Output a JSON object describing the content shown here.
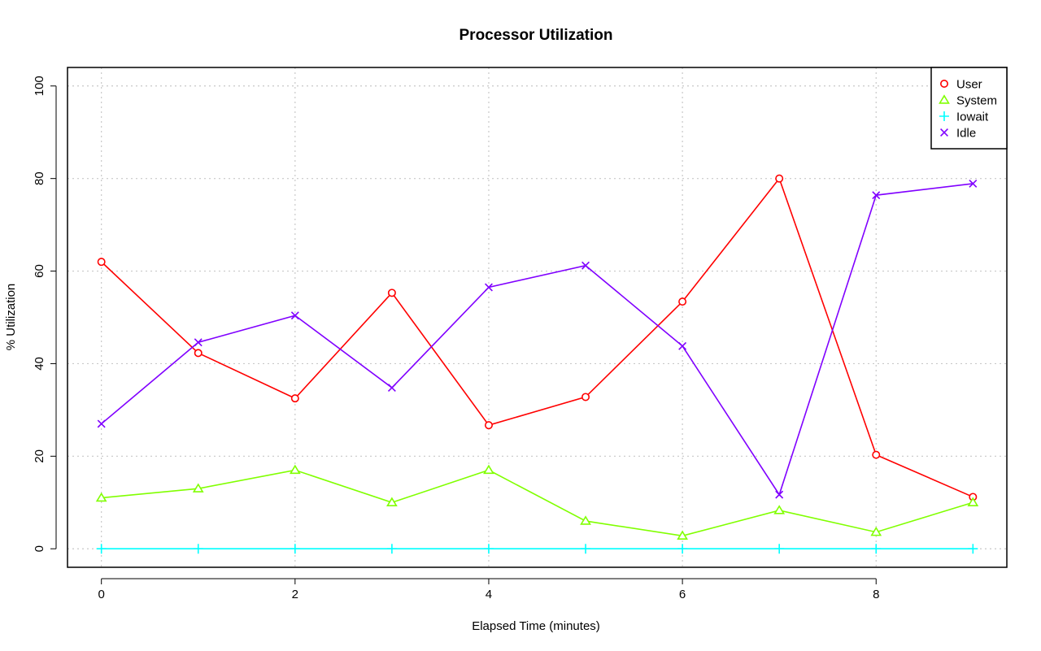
{
  "chart_data": {
    "type": "line",
    "title": "Processor Utilization",
    "xlabel": "Elapsed Time (minutes)",
    "ylabel": "% Utilization",
    "xlim": [
      -0.35,
      9.35
    ],
    "ylim": [
      -4,
      104
    ],
    "x_ticks": [
      0,
      2,
      4,
      6,
      8
    ],
    "y_ticks": [
      0,
      20,
      40,
      60,
      80,
      100
    ],
    "grid": true,
    "legend_position": "top-right",
    "x": [
      0,
      1,
      2,
      3,
      4,
      5,
      6,
      7,
      8,
      9
    ],
    "series": [
      {
        "name": "User",
        "color": "#ff0000",
        "marker": "circle",
        "values": [
          62,
          42.3,
          32.5,
          55.3,
          26.7,
          32.8,
          53.4,
          80,
          20.3,
          11.2
        ]
      },
      {
        "name": "System",
        "color": "#80ff00",
        "marker": "triangle",
        "values": [
          11,
          13,
          17,
          10,
          17,
          6,
          2.8,
          8.3,
          3.6,
          10
        ]
      },
      {
        "name": "Iowait",
        "color": "#00ffff",
        "marker": "plus",
        "values": [
          0,
          0,
          0,
          0,
          0,
          0,
          0,
          0,
          0,
          0
        ]
      },
      {
        "name": "Idle",
        "color": "#8000ff",
        "marker": "x",
        "values": [
          27,
          44.6,
          50.4,
          34.8,
          56.5,
          61.2,
          43.8,
          11.7,
          76.4,
          78.9
        ]
      }
    ]
  }
}
